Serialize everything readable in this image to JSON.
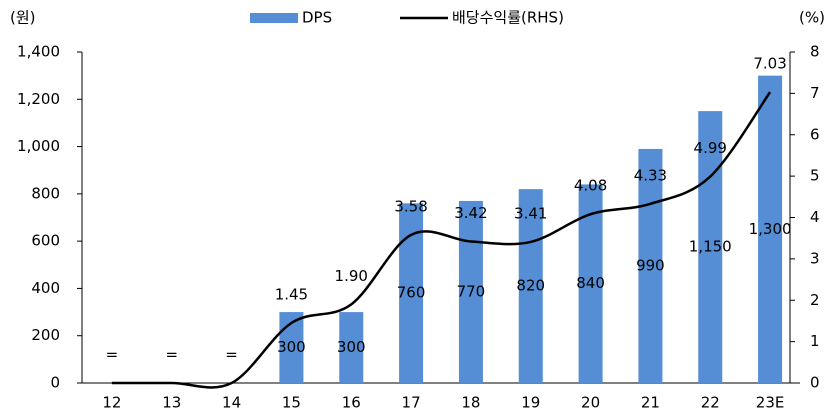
{
  "chart_data": {
    "type": "bar-line",
    "ylabel": "(원)",
    "y2label": "(%)",
    "categories": [
      "12",
      "13",
      "14",
      "15",
      "16",
      "17",
      "18",
      "19",
      "20",
      "21",
      "22",
      "23E"
    ],
    "series": [
      {
        "name": "DPS",
        "type": "bar",
        "color": "#558ed5",
        "values": [
          0,
          0,
          0,
          300,
          300,
          760,
          770,
          820,
          840,
          990,
          1150,
          1300
        ],
        "value_labels": [
          "=",
          "=",
          "=",
          "300",
          "300",
          "760",
          "770",
          "820",
          "840",
          "990",
          "1,150",
          "1,300"
        ]
      },
      {
        "name": "배당수익률(RHS)",
        "type": "line",
        "axis": "y2",
        "color": "#000000",
        "values": [
          0,
          0,
          0,
          1.45,
          1.9,
          3.58,
          3.42,
          3.41,
          4.08,
          4.33,
          4.99,
          7.03
        ],
        "value_labels": [
          null,
          null,
          null,
          "1.45",
          "1.90",
          "3.58",
          "3.42",
          "3.41",
          "4.08",
          "4.33",
          "4.99",
          "7.03"
        ]
      }
    ],
    "ylim": [
      0,
      1400
    ],
    "yticks": [
      0,
      200,
      400,
      600,
      800,
      {
        "value": 1000,
        "label": "1,000"
      },
      {
        "value": 1200,
        "label": "1,200"
      },
      {
        "value": 1400,
        "label": "1,400"
      }
    ],
    "y2lim": [
      0,
      8
    ],
    "y2ticks": [
      0,
      1,
      2,
      3,
      4,
      5,
      6,
      7,
      8
    ],
    "legend": "top"
  }
}
